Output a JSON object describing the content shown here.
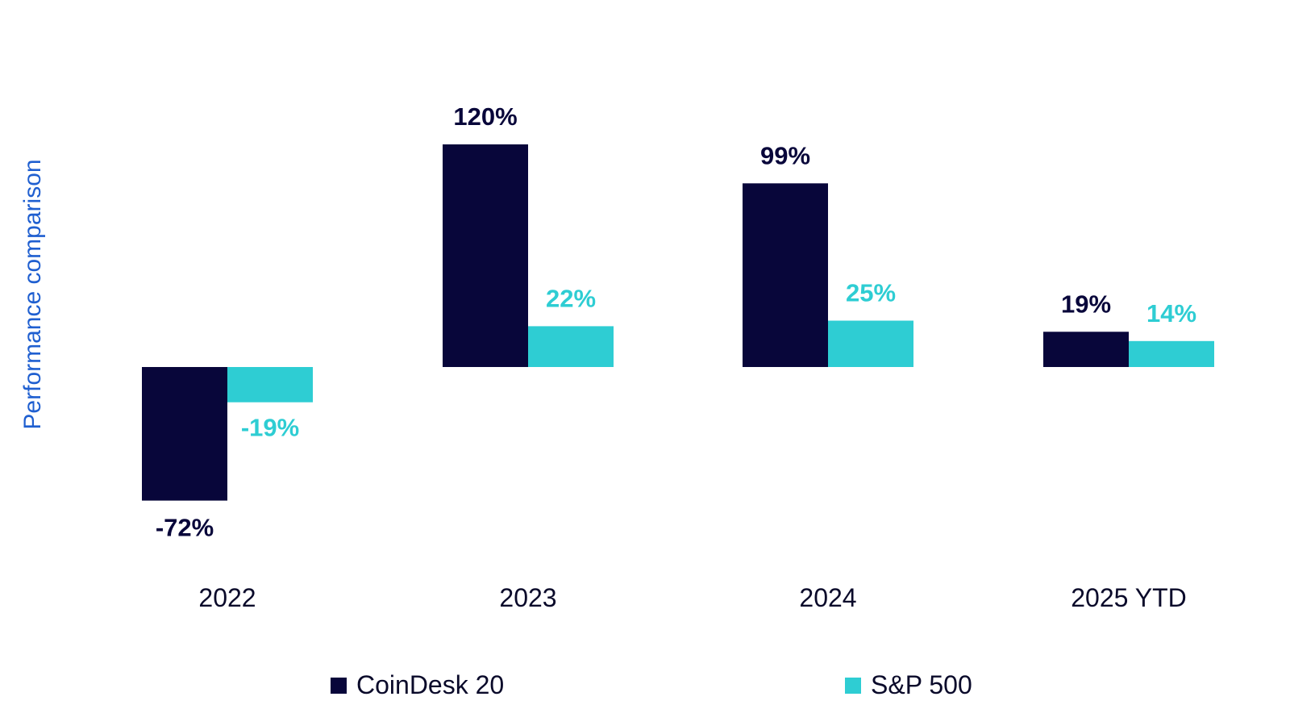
{
  "chart_data": {
    "type": "bar",
    "title": "",
    "ylabel": "Performance comparison",
    "xlabel": "",
    "categories": [
      "2022",
      "2023",
      "2024",
      "2025 YTD"
    ],
    "series": [
      {
        "name": "CoinDesk 20",
        "color": "#08063a",
        "values": [
          -72,
          120,
          99,
          19
        ],
        "labels": [
          "-72%",
          "120%",
          "99%",
          "19%"
        ]
      },
      {
        "name": "S&P 500",
        "color": "#2ecdd3",
        "values": [
          -19,
          22,
          25,
          14
        ],
        "labels": [
          "-19%",
          "22%",
          "25%",
          "14%"
        ]
      }
    ],
    "ylim": [
      -100,
      140
    ],
    "grid": false,
    "legend_position": "bottom"
  }
}
